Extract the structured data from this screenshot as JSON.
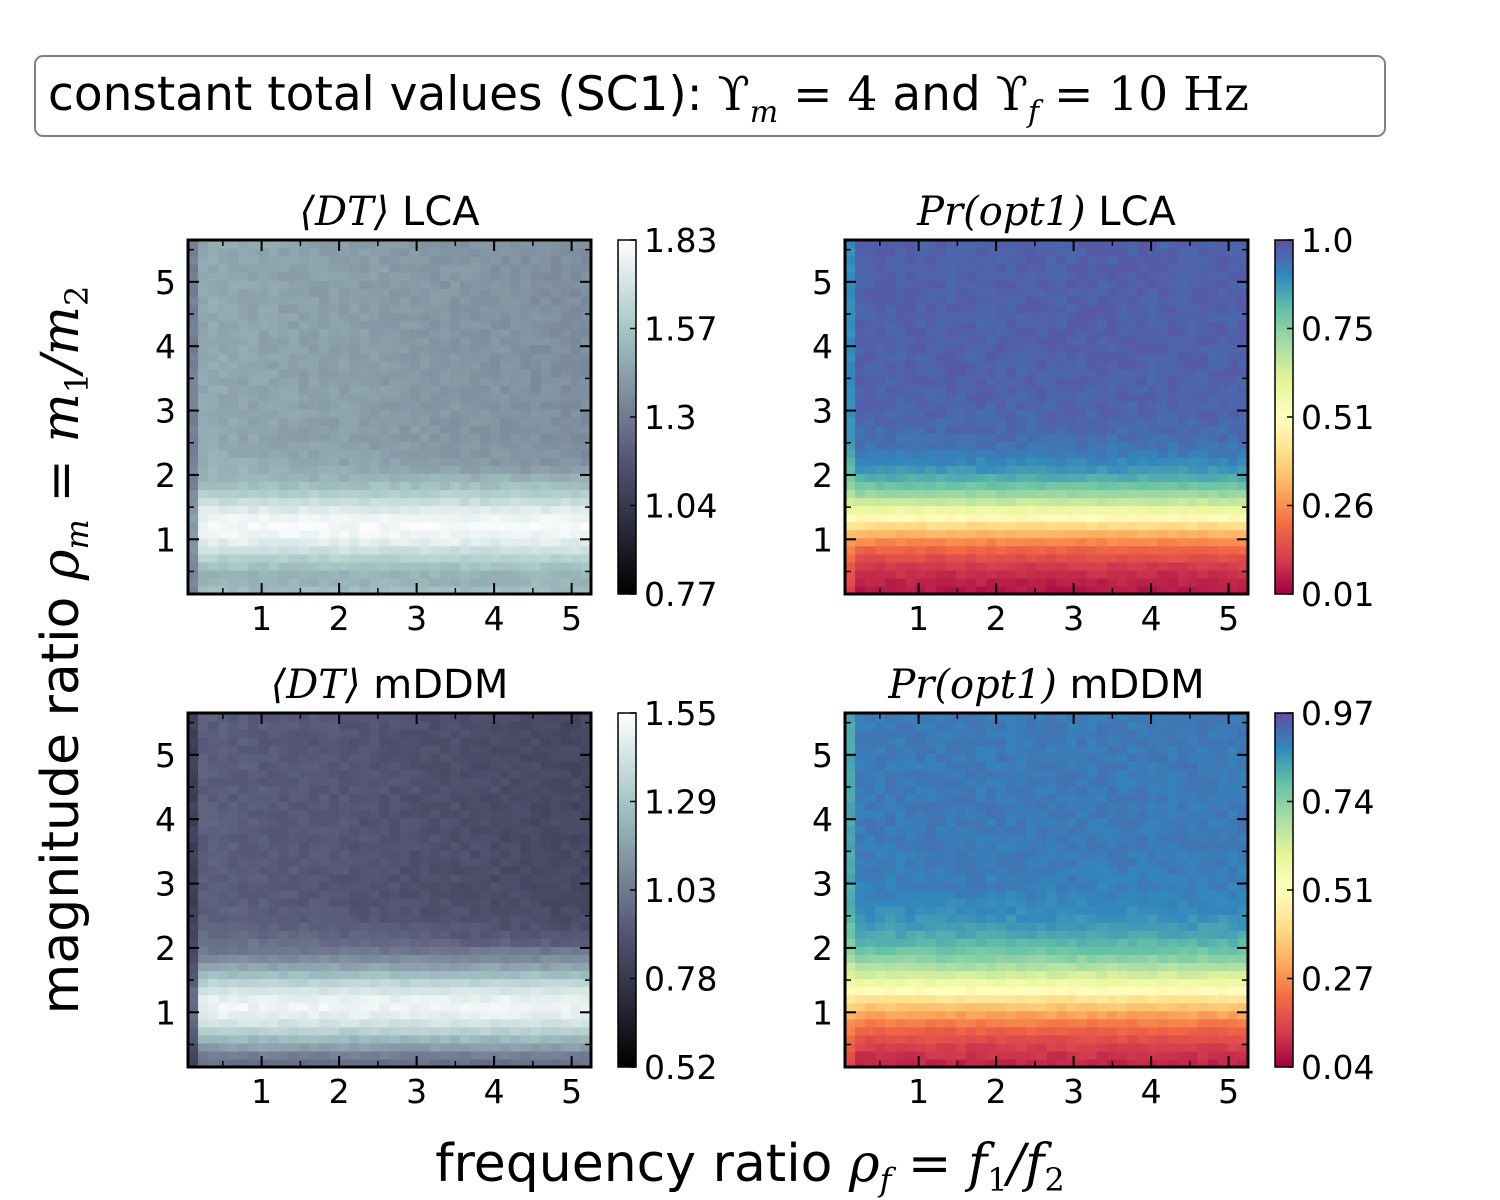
{
  "banner": {
    "text": "constant total values (SC1): ",
    "math_text": "ϒ_m = 4 and ϒ_f = 10 Hz",
    "part_upsilon": "ϒ",
    "part_m": "m",
    "part_eq4": " = 4",
    "part_and": " and ",
    "part_f": "f",
    "part_eq10": " = 10",
    "part_hz": " Hz"
  },
  "figure": {
    "xlabel_text": "frequency ratio ",
    "xlabel_math": "ρ_f = f_1/f_2",
    "ylabel_text": "magnitude ratio ",
    "ylabel_math": "ρ_m = m_1/m_2"
  },
  "colors": {
    "bone_low": "#000000",
    "bone_mid": "#7c8fa0",
    "bone_high": "#ffffff",
    "spectral_low": "#c2185b",
    "spectral_mid": "#ffffbf",
    "spectral_high": "#4a5aa8"
  },
  "chart_data": [
    {
      "type": "heatmap",
      "id": "dt_lca",
      "title": "⟨DT⟩ LCA",
      "title_math": "⟨DT⟩",
      "title_text": " LCA",
      "colormap": "bone",
      "xlim": [
        0.05,
        5.25
      ],
      "ylim": [
        0.15,
        5.65
      ],
      "xticks": [
        1,
        2,
        3,
        4,
        5
      ],
      "yticks": [
        1,
        2,
        3,
        4,
        5
      ],
      "colorbar": {
        "min": 0.77,
        "max": 1.83,
        "ticks": [
          "0.77",
          "1.04",
          "1.3",
          "1.57",
          "1.83"
        ]
      },
      "pattern": "ridge",
      "surface": {
        "high": 1.8,
        "low": 1.42,
        "ridge_center": 1.2,
        "ridge_width": 0.6,
        "bottom_value": 1.55,
        "left_edge_value": 1.25
      }
    },
    {
      "type": "heatmap",
      "id": "pr_lca",
      "title": "Pr(opt1) LCA",
      "title_math": "Pr(opt1)",
      "title_text": " LCA",
      "colormap": "Spectral",
      "xlim": [
        0.05,
        5.25
      ],
      "ylim": [
        0.15,
        5.65
      ],
      "xticks": [
        1,
        2,
        3,
        4,
        5
      ],
      "yticks": [
        1,
        2,
        3,
        4,
        5
      ],
      "colorbar": {
        "min": 0.01,
        "max": 1.0,
        "ticks": [
          "0.01",
          "0.26",
          "0.51",
          "0.75",
          "1.0"
        ]
      },
      "pattern": "sigmoid",
      "surface": {
        "low": 0.02,
        "high": 0.97,
        "midpoint": 1.35,
        "steepness": 1.5
      }
    },
    {
      "type": "heatmap",
      "id": "dt_mddm",
      "title": "⟨DT⟩ mDDM",
      "title_math": "⟨DT⟩",
      "title_text": " mDDM",
      "colormap": "bone",
      "xlim": [
        0.05,
        5.25
      ],
      "ylim": [
        0.15,
        5.65
      ],
      "xticks": [
        1,
        2,
        3,
        4,
        5
      ],
      "yticks": [
        1,
        2,
        3,
        4,
        5
      ],
      "colorbar": {
        "min": 0.52,
        "max": 1.55,
        "ticks": [
          "0.52",
          "0.78",
          "1.03",
          "1.29",
          "1.55"
        ]
      },
      "pattern": "ridge",
      "surface": {
        "high": 1.5,
        "low": 0.9,
        "ridge_center": 1.1,
        "ridge_width": 0.7,
        "bottom_value": 1.0,
        "left_edge_value": 0.75
      }
    },
    {
      "type": "heatmap",
      "id": "pr_mddm",
      "title": "Pr(opt1) mDDM",
      "title_math": "Pr(opt1)",
      "title_text": " mDDM",
      "colormap": "Spectral",
      "xlim": [
        0.05,
        5.25
      ],
      "ylim": [
        0.15,
        5.65
      ],
      "xticks": [
        1,
        2,
        3,
        4,
        5
      ],
      "yticks": [
        1,
        2,
        3,
        4,
        5
      ],
      "colorbar": {
        "min": 0.04,
        "max": 0.97,
        "ticks": [
          "0.04",
          "0.27",
          "0.51",
          "0.74",
          "0.97"
        ]
      },
      "pattern": "sigmoid",
      "surface": {
        "low": 0.05,
        "high": 0.9,
        "midpoint": 1.3,
        "steepness": 1.3
      }
    }
  ]
}
